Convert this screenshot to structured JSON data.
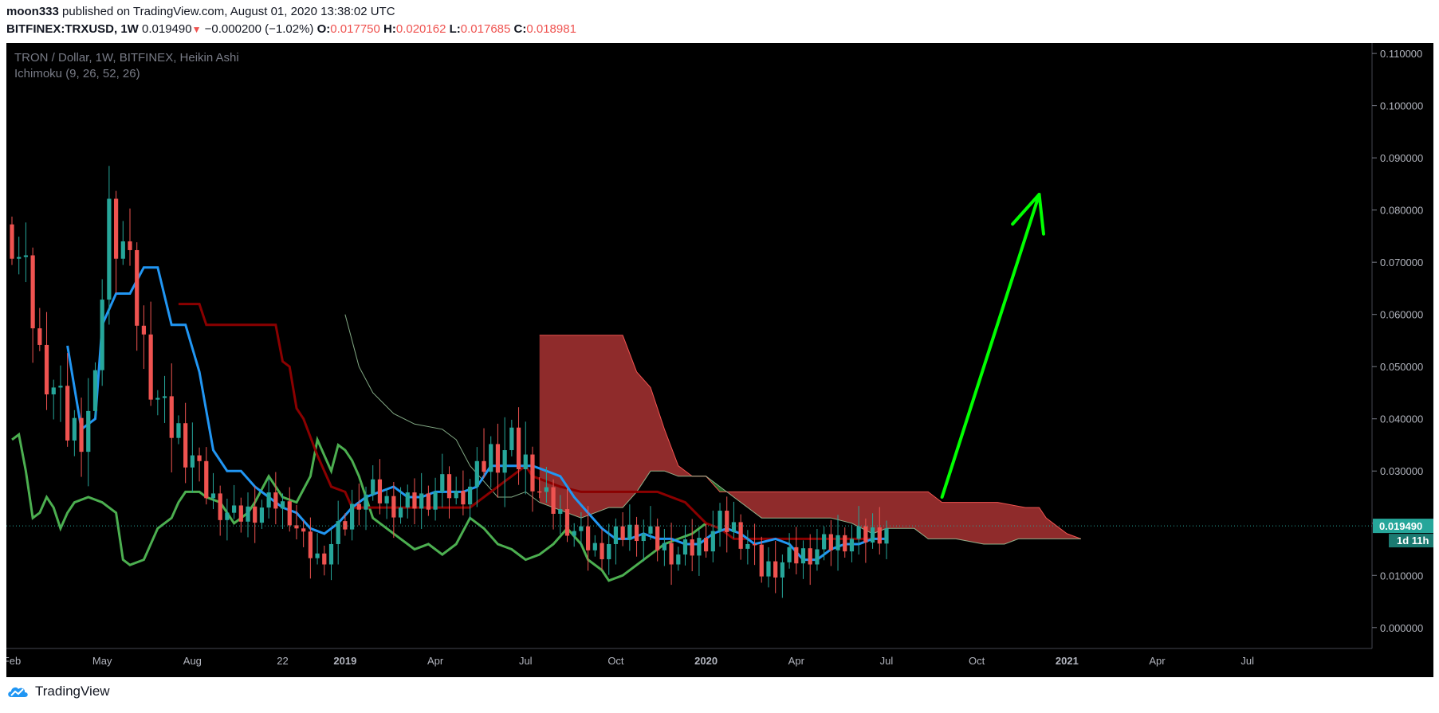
{
  "header": {
    "author": "moon333",
    "published_text": "published on TradingView.com, August 01, 2020 13:38:02 UTC",
    "symbol": "BITFINEX:TRXUSD, 1W",
    "price": "0.019490",
    "change": "−0.000200 (−1.02%)",
    "o_label": "O:",
    "o_value": "0.017750",
    "h_label": "H:",
    "h_value": "0.020162",
    "l_label": "L:",
    "l_value": "0.017685",
    "c_label": "C:",
    "c_value": "0.018981"
  },
  "legend": {
    "title": "TRON / Dollar, 1W, BITFINEX, Heikin Ashi",
    "indicator": "Ichimoku (9, 26, 52, 26)"
  },
  "price_tag": {
    "value": "0.019490",
    "countdown": "1d 11h"
  },
  "footer": {
    "brand": "TradingView",
    "logo_icon": "tradingview-cloud-logo-icon"
  },
  "colors": {
    "background": "#000000",
    "up": "#26a69a",
    "down": "#ef5350",
    "conversion_line": "#2196f3",
    "base_line": "#8b0000",
    "lagging_span": "#4caf50",
    "leading_span_a": "#a5d6a7",
    "leading_span_b": "#ef5350",
    "cloud_bearish": "#a83232",
    "cloud_bullish": "#2e7d32",
    "arrow": "#00ff00",
    "tag": "#26a69a"
  },
  "chart_data": {
    "type": "candlestick",
    "style": "Heikin Ashi",
    "timeframe": "1W",
    "ylim": [
      -0.004,
      0.112
    ],
    "y_ticks": [
      "0.000000",
      "0.010000",
      "0.020000",
      "0.030000",
      "0.040000",
      "0.050000",
      "0.060000",
      "0.070000",
      "0.080000",
      "0.090000",
      "0.100000",
      "0.110000"
    ],
    "x_ticks": [
      {
        "label": "Feb",
        "t": 0.0,
        "bold": false
      },
      {
        "label": "May",
        "t": 13.0,
        "bold": false
      },
      {
        "label": "Aug",
        "t": 26.0,
        "bold": false
      },
      {
        "label": "22",
        "t": 39.0,
        "bold": false
      },
      {
        "label": "2019",
        "t": 48.0,
        "bold": true
      },
      {
        "label": "Apr",
        "t": 61.0,
        "bold": false
      },
      {
        "label": "Jul",
        "t": 74.0,
        "bold": false
      },
      {
        "label": "Oct",
        "t": 87.0,
        "bold": false
      },
      {
        "label": "2020",
        "t": 100.0,
        "bold": true
      },
      {
        "label": "Apr",
        "t": 113.0,
        "bold": false
      },
      {
        "label": "Jul",
        "t": 126.0,
        "bold": false
      },
      {
        "label": "Oct",
        "t": 139.0,
        "bold": false
      },
      {
        "label": "2021",
        "t": 152.0,
        "bold": true
      },
      {
        "label": "Apr",
        "t": 165.0,
        "bold": false
      },
      {
        "label": "Jul",
        "t": 178.0,
        "bold": false
      }
    ],
    "close_keypoints": [
      [
        0,
        0.075
      ],
      [
        2,
        0.067
      ],
      [
        4,
        0.052
      ],
      [
        6,
        0.046
      ],
      [
        8,
        0.038
      ],
      [
        10,
        0.038
      ],
      [
        12,
        0.045
      ],
      [
        13,
        0.065
      ],
      [
        14,
        0.08
      ],
      [
        15,
        0.075
      ],
      [
        16,
        0.074
      ],
      [
        17,
        0.068
      ],
      [
        18,
        0.06
      ],
      [
        20,
        0.048
      ],
      [
        22,
        0.04
      ],
      [
        24,
        0.037
      ],
      [
        26,
        0.033
      ],
      [
        28,
        0.026
      ],
      [
        30,
        0.023
      ],
      [
        32,
        0.021
      ],
      [
        34,
        0.022
      ],
      [
        36,
        0.023
      ],
      [
        38,
        0.024
      ],
      [
        40,
        0.022
      ],
      [
        42,
        0.016
      ],
      [
        44,
        0.013
      ],
      [
        46,
        0.016
      ],
      [
        48,
        0.02
      ],
      [
        50,
        0.025
      ],
      [
        52,
        0.026
      ],
      [
        54,
        0.024
      ],
      [
        56,
        0.023
      ],
      [
        58,
        0.024
      ],
      [
        60,
        0.025
      ],
      [
        62,
        0.027
      ],
      [
        64,
        0.025
      ],
      [
        66,
        0.027
      ],
      [
        68,
        0.032
      ],
      [
        70,
        0.034
      ],
      [
        72,
        0.034
      ],
      [
        74,
        0.031
      ],
      [
        76,
        0.026
      ],
      [
        78,
        0.023
      ],
      [
        80,
        0.02
      ],
      [
        82,
        0.017
      ],
      [
        84,
        0.015
      ],
      [
        86,
        0.016
      ],
      [
        88,
        0.018
      ],
      [
        90,
        0.019
      ],
      [
        92,
        0.017
      ],
      [
        94,
        0.015
      ],
      [
        96,
        0.014
      ],
      [
        98,
        0.015
      ],
      [
        100,
        0.017
      ],
      [
        102,
        0.02
      ],
      [
        104,
        0.019
      ],
      [
        106,
        0.016
      ],
      [
        108,
        0.011
      ],
      [
        110,
        0.012
      ],
      [
        112,
        0.013
      ],
      [
        114,
        0.014
      ],
      [
        116,
        0.015
      ],
      [
        118,
        0.016
      ],
      [
        120,
        0.017
      ],
      [
        122,
        0.017
      ],
      [
        124,
        0.018
      ],
      [
        126,
        0.019
      ]
    ],
    "conversion_line": [
      [
        8,
        0.054
      ],
      [
        10,
        0.038
      ],
      [
        12,
        0.04
      ],
      [
        13,
        0.058
      ],
      [
        15,
        0.064
      ],
      [
        17,
        0.064
      ],
      [
        19,
        0.069
      ],
      [
        21,
        0.069
      ],
      [
        23,
        0.058
      ],
      [
        25,
        0.058
      ],
      [
        27,
        0.049
      ],
      [
        29,
        0.034
      ],
      [
        31,
        0.03
      ],
      [
        33,
        0.03
      ],
      [
        35,
        0.027
      ],
      [
        37,
        0.025
      ],
      [
        39,
        0.023
      ],
      [
        41,
        0.022
      ],
      [
        43,
        0.019
      ],
      [
        45,
        0.018
      ],
      [
        47,
        0.02
      ],
      [
        49,
        0.023
      ],
      [
        51,
        0.025
      ],
      [
        53,
        0.026
      ],
      [
        55,
        0.027
      ],
      [
        57,
        0.025
      ],
      [
        59,
        0.025
      ],
      [
        61,
        0.026
      ],
      [
        63,
        0.026
      ],
      [
        65,
        0.026
      ],
      [
        67,
        0.027
      ],
      [
        69,
        0.031
      ],
      [
        71,
        0.031
      ],
      [
        73,
        0.031
      ],
      [
        75,
        0.031
      ],
      [
        77,
        0.03
      ],
      [
        79,
        0.029
      ],
      [
        81,
        0.025
      ],
      [
        83,
        0.022
      ],
      [
        85,
        0.019
      ],
      [
        87,
        0.017
      ],
      [
        89,
        0.017
      ],
      [
        91,
        0.018
      ],
      [
        93,
        0.017
      ],
      [
        95,
        0.017
      ],
      [
        97,
        0.016
      ],
      [
        99,
        0.016
      ],
      [
        101,
        0.018
      ],
      [
        103,
        0.019
      ],
      [
        105,
        0.018
      ],
      [
        107,
        0.016
      ],
      [
        110,
        0.017
      ],
      [
        112,
        0.016
      ],
      [
        114,
        0.013
      ],
      [
        116,
        0.013
      ],
      [
        118,
        0.015
      ],
      [
        120,
        0.016
      ],
      [
        122,
        0.016
      ],
      [
        124,
        0.017
      ],
      [
        126,
        0.017
      ]
    ],
    "base_line": [
      [
        24,
        0.062
      ],
      [
        27,
        0.062
      ],
      [
        28,
        0.058
      ],
      [
        38,
        0.058
      ],
      [
        39,
        0.051
      ],
      [
        40,
        0.05
      ],
      [
        41,
        0.042
      ],
      [
        42,
        0.04
      ],
      [
        44,
        0.033
      ],
      [
        46,
        0.027
      ],
      [
        48,
        0.026
      ],
      [
        49,
        0.023
      ],
      [
        51,
        0.023
      ],
      [
        53,
        0.023
      ],
      [
        65,
        0.023
      ],
      [
        66,
        0.023
      ],
      [
        69,
        0.026
      ],
      [
        72,
        0.029
      ],
      [
        74,
        0.031
      ],
      [
        75,
        0.029
      ],
      [
        77,
        0.028
      ],
      [
        79,
        0.027
      ],
      [
        82,
        0.026
      ],
      [
        84,
        0.026
      ],
      [
        93,
        0.026
      ],
      [
        97,
        0.024
      ],
      [
        100,
        0.02
      ],
      [
        102,
        0.019
      ],
      [
        104,
        0.017
      ],
      [
        106,
        0.017
      ],
      [
        126,
        0.017
      ]
    ],
    "lagging_span": [
      [
        0,
        0.036
      ],
      [
        1,
        0.037
      ],
      [
        2,
        0.03
      ],
      [
        3,
        0.021
      ],
      [
        4,
        0.022
      ],
      [
        5,
        0.025
      ],
      [
        6,
        0.023
      ],
      [
        7,
        0.019
      ],
      [
        8,
        0.022
      ],
      [
        9,
        0.024
      ],
      [
        11,
        0.025
      ],
      [
        13,
        0.024
      ],
      [
        15,
        0.022
      ],
      [
        16,
        0.013
      ],
      [
        17,
        0.012
      ],
      [
        19,
        0.013
      ],
      [
        21,
        0.019
      ],
      [
        23,
        0.021
      ],
      [
        24,
        0.024
      ],
      [
        25,
        0.026
      ],
      [
        27,
        0.026
      ],
      [
        28,
        0.025
      ],
      [
        30,
        0.024
      ],
      [
        32,
        0.02
      ],
      [
        34,
        0.022
      ],
      [
        35,
        0.024
      ],
      [
        37,
        0.029
      ],
      [
        39,
        0.025
      ],
      [
        41,
        0.024
      ],
      [
        43,
        0.029
      ],
      [
        44,
        0.036
      ],
      [
        45,
        0.033
      ],
      [
        46,
        0.03
      ],
      [
        47,
        0.035
      ],
      [
        48,
        0.034
      ],
      [
        49,
        0.032
      ],
      [
        50,
        0.029
      ],
      [
        51,
        0.025
      ],
      [
        52,
        0.021
      ],
      [
        54,
        0.019
      ],
      [
        56,
        0.017
      ],
      [
        58,
        0.015
      ],
      [
        60,
        0.016
      ],
      [
        62,
        0.014
      ],
      [
        64,
        0.016
      ],
      [
        66,
        0.021
      ],
      [
        68,
        0.019
      ],
      [
        70,
        0.016
      ],
      [
        72,
        0.015
      ],
      [
        74,
        0.013
      ],
      [
        76,
        0.014
      ],
      [
        78,
        0.016
      ],
      [
        80,
        0.019
      ],
      [
        82,
        0.016
      ],
      [
        83,
        0.013
      ],
      [
        85,
        0.011
      ],
      [
        86,
        0.009
      ],
      [
        88,
        0.01
      ],
      [
        90,
        0.012
      ],
      [
        92,
        0.014
      ],
      [
        94,
        0.016
      ],
      [
        96,
        0.017
      ],
      [
        98,
        0.018
      ],
      [
        100,
        0.02
      ]
    ],
    "cloud": {
      "span_a": [
        [
          48,
          0.06
        ],
        [
          49,
          0.055
        ],
        [
          50,
          0.05
        ],
        [
          52,
          0.045
        ],
        [
          55,
          0.041
        ],
        [
          58,
          0.039
        ],
        [
          62,
          0.038
        ],
        [
          64,
          0.036
        ],
        [
          66,
          0.031
        ],
        [
          68,
          0.028
        ],
        [
          70,
          0.025
        ],
        [
          72,
          0.025
        ],
        [
          74,
          0.026
        ],
        [
          76,
          0.024
        ],
        [
          78,
          0.023
        ],
        [
          80,
          0.022
        ],
        [
          82,
          0.021
        ],
        [
          84,
          0.022
        ],
        [
          86,
          0.023
        ],
        [
          88,
          0.023
        ],
        [
          90,
          0.026
        ],
        [
          92,
          0.03
        ],
        [
          94,
          0.03
        ],
        [
          96,
          0.029
        ],
        [
          98,
          0.029
        ],
        [
          100,
          0.029
        ],
        [
          102,
          0.027
        ],
        [
          104,
          0.025
        ],
        [
          106,
          0.023
        ],
        [
          108,
          0.021
        ],
        [
          110,
          0.021
        ],
        [
          114,
          0.021
        ],
        [
          118,
          0.021
        ],
        [
          121,
          0.02
        ],
        [
          124,
          0.018
        ],
        [
          126,
          0.019
        ],
        [
          130,
          0.019
        ],
        [
          132,
          0.017
        ],
        [
          136,
          0.017
        ],
        [
          140,
          0.016
        ],
        [
          143,
          0.016
        ],
        [
          145,
          0.017
        ],
        [
          149,
          0.017
        ],
        [
          152,
          0.017
        ],
        [
          154,
          0.017
        ]
      ],
      "span_b": [
        [
          76,
          0.056
        ],
        [
          78,
          0.056
        ],
        [
          80,
          0.056
        ],
        [
          82,
          0.056
        ],
        [
          84,
          0.056
        ],
        [
          86,
          0.056
        ],
        [
          88,
          0.056
        ],
        [
          90,
          0.049
        ],
        [
          92,
          0.046
        ],
        [
          94,
          0.038
        ],
        [
          96,
          0.031
        ],
        [
          98,
          0.029
        ],
        [
          100,
          0.029
        ],
        [
          102,
          0.026
        ],
        [
          104,
          0.026
        ],
        [
          110,
          0.026
        ],
        [
          114,
          0.026
        ],
        [
          118,
          0.026
        ],
        [
          121,
          0.026
        ],
        [
          124,
          0.026
        ],
        [
          128,
          0.026
        ],
        [
          132,
          0.026
        ],
        [
          134,
          0.024
        ],
        [
          138,
          0.024
        ],
        [
          142,
          0.024
        ],
        [
          146,
          0.023
        ],
        [
          148,
          0.023
        ],
        [
          149,
          0.021
        ],
        [
          150,
          0.02
        ],
        [
          152,
          0.018
        ],
        [
          154,
          0.017
        ]
      ]
    },
    "annotation": {
      "type": "arrow",
      "from": [
        134,
        0.025
      ],
      "to": [
        148,
        0.083
      ]
    }
  }
}
